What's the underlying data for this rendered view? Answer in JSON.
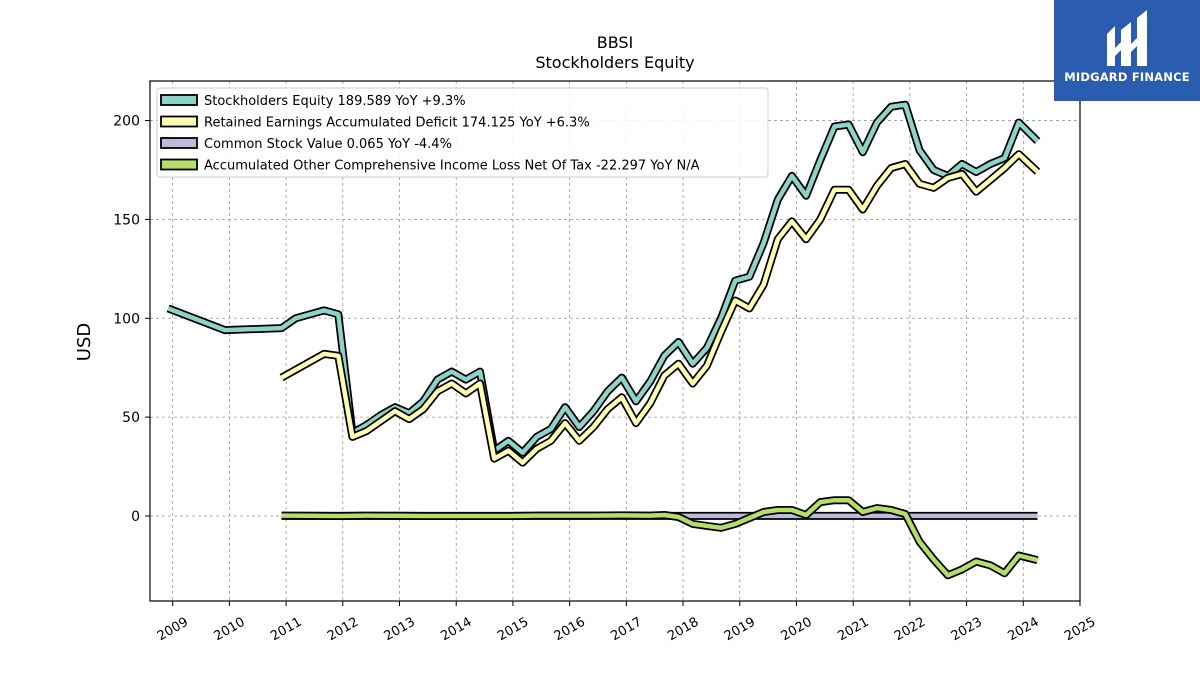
{
  "brand": {
    "name": "MIDGARD FINANCE",
    "color": "#2a5db0"
  },
  "chart_data": {
    "type": "line",
    "title": "BBSI",
    "subtitle": "Stockholders  Equity",
    "ylabel": "USD",
    "xlabel": "",
    "xlim": [
      2008.6,
      2025.0
    ],
    "ylim": [
      -43,
      220
    ],
    "grid": true,
    "legend_position": "top-left",
    "x_ticks": [
      2009,
      2010,
      2011,
      2012,
      2013,
      2014,
      2015,
      2016,
      2017,
      2018,
      2019,
      2020,
      2021,
      2022,
      2023,
      2024,
      2025
    ],
    "y_ticks": [
      0,
      50,
      100,
      150,
      200
    ],
    "series": [
      {
        "name": "Stockholders Equity  189.589 YoY +9.3%",
        "color": "#8dd3c7",
        "points": [
          [
            2008.92,
            105
          ],
          [
            2009.92,
            94
          ],
          [
            2010.92,
            95
          ],
          [
            2011.17,
            100
          ],
          [
            2011.42,
            102
          ],
          [
            2011.67,
            104
          ],
          [
            2011.92,
            102
          ],
          [
            2012.17,
            42
          ],
          [
            2012.42,
            46
          ],
          [
            2012.67,
            51
          ],
          [
            2012.92,
            55
          ],
          [
            2013.17,
            52
          ],
          [
            2013.42,
            58
          ],
          [
            2013.67,
            69
          ],
          [
            2013.92,
            73
          ],
          [
            2014.17,
            69
          ],
          [
            2014.42,
            73
          ],
          [
            2014.67,
            33
          ],
          [
            2014.92,
            38
          ],
          [
            2015.17,
            32
          ],
          [
            2015.42,
            40
          ],
          [
            2015.67,
            44
          ],
          [
            2015.92,
            55
          ],
          [
            2016.17,
            45
          ],
          [
            2016.42,
            53
          ],
          [
            2016.67,
            63
          ],
          [
            2016.92,
            70
          ],
          [
            2017.17,
            58
          ],
          [
            2017.42,
            68
          ],
          [
            2017.67,
            81
          ],
          [
            2017.92,
            88
          ],
          [
            2018.17,
            77
          ],
          [
            2018.42,
            85
          ],
          [
            2018.67,
            100
          ],
          [
            2018.92,
            119
          ],
          [
            2019.17,
            121
          ],
          [
            2019.42,
            138
          ],
          [
            2019.67,
            160
          ],
          [
            2019.92,
            172
          ],
          [
            2020.17,
            162
          ],
          [
            2020.42,
            180
          ],
          [
            2020.67,
            197
          ],
          [
            2020.92,
            198
          ],
          [
            2021.17,
            184
          ],
          [
            2021.42,
            199
          ],
          [
            2021.67,
            207
          ],
          [
            2021.92,
            208
          ],
          [
            2022.17,
            185
          ],
          [
            2022.42,
            175
          ],
          [
            2022.67,
            172
          ],
          [
            2022.92,
            178
          ],
          [
            2023.17,
            174
          ],
          [
            2023.42,
            178
          ],
          [
            2023.67,
            181
          ],
          [
            2023.92,
            199
          ],
          [
            2024.25,
            189.589
          ]
        ]
      },
      {
        "name": "Retained Earnings Accumulated Deficit  174.125 YoY +6.3%",
        "color": "#ffffb3",
        "points": [
          [
            2010.92,
            70
          ],
          [
            2011.17,
            74
          ],
          [
            2011.42,
            78
          ],
          [
            2011.67,
            82
          ],
          [
            2011.92,
            81
          ],
          [
            2012.17,
            40
          ],
          [
            2012.42,
            43
          ],
          [
            2012.67,
            48
          ],
          [
            2012.92,
            53
          ],
          [
            2013.17,
            49
          ],
          [
            2013.42,
            54
          ],
          [
            2013.67,
            63
          ],
          [
            2013.92,
            67
          ],
          [
            2014.17,
            62
          ],
          [
            2014.42,
            67
          ],
          [
            2014.67,
            29
          ],
          [
            2014.92,
            33
          ],
          [
            2015.17,
            27
          ],
          [
            2015.42,
            34
          ],
          [
            2015.67,
            38
          ],
          [
            2015.92,
            47
          ],
          [
            2016.17,
            38
          ],
          [
            2016.42,
            45
          ],
          [
            2016.67,
            54
          ],
          [
            2016.92,
            60
          ],
          [
            2017.17,
            47
          ],
          [
            2017.42,
            57
          ],
          [
            2017.67,
            71
          ],
          [
            2017.92,
            77
          ],
          [
            2018.17,
            67
          ],
          [
            2018.42,
            76
          ],
          [
            2018.67,
            93
          ],
          [
            2018.92,
            109
          ],
          [
            2019.17,
            105
          ],
          [
            2019.42,
            117
          ],
          [
            2019.67,
            140
          ],
          [
            2019.92,
            149
          ],
          [
            2020.17,
            140
          ],
          [
            2020.42,
            150
          ],
          [
            2020.67,
            165
          ],
          [
            2020.92,
            165
          ],
          [
            2021.17,
            155
          ],
          [
            2021.42,
            167
          ],
          [
            2021.67,
            176
          ],
          [
            2021.92,
            178
          ],
          [
            2022.17,
            168
          ],
          [
            2022.42,
            166
          ],
          [
            2022.67,
            171
          ],
          [
            2022.92,
            173
          ],
          [
            2023.17,
            164
          ],
          [
            2023.42,
            170
          ],
          [
            2023.67,
            176
          ],
          [
            2023.92,
            183
          ],
          [
            2024.25,
            174.125
          ]
        ]
      },
      {
        "name": "Common Stock Value  0.065 YoY -4.4%",
        "color": "#bebada",
        "points": [
          [
            2010.92,
            0.065
          ],
          [
            2024.25,
            0.065
          ]
        ]
      },
      {
        "name": "Accumulated Other Comprehensive Income Loss Net Of Tax  -22.297 YoY N/A",
        "color": "#b3de69",
        "points": [
          [
            2010.92,
            0.2
          ],
          [
            2011.42,
            0.1
          ],
          [
            2011.92,
            0
          ],
          [
            2012.42,
            0.2
          ],
          [
            2012.92,
            0.1
          ],
          [
            2013.42,
            0
          ],
          [
            2013.92,
            0
          ],
          [
            2014.42,
            0
          ],
          [
            2014.92,
            0
          ],
          [
            2015.42,
            0.2
          ],
          [
            2015.92,
            0.2
          ],
          [
            2016.42,
            0.2
          ],
          [
            2016.92,
            0.3
          ],
          [
            2017.42,
            0.2
          ],
          [
            2017.67,
            0.5
          ],
          [
            2017.92,
            -0.5
          ],
          [
            2018.17,
            -4
          ],
          [
            2018.42,
            -5
          ],
          [
            2018.67,
            -6
          ],
          [
            2018.92,
            -4
          ],
          [
            2019.17,
            -1
          ],
          [
            2019.42,
            2
          ],
          [
            2019.67,
            3
          ],
          [
            2019.92,
            3
          ],
          [
            2020.17,
            0.5
          ],
          [
            2020.42,
            7
          ],
          [
            2020.67,
            8
          ],
          [
            2020.92,
            8
          ],
          [
            2021.17,
            2
          ],
          [
            2021.42,
            4
          ],
          [
            2021.67,
            3
          ],
          [
            2021.92,
            1
          ],
          [
            2022.17,
            -13
          ],
          [
            2022.42,
            -22
          ],
          [
            2022.67,
            -30
          ],
          [
            2022.92,
            -27
          ],
          [
            2023.17,
            -23
          ],
          [
            2023.42,
            -25
          ],
          [
            2023.67,
            -29
          ],
          [
            2023.92,
            -20
          ],
          [
            2024.25,
            -22.297
          ]
        ]
      }
    ]
  }
}
